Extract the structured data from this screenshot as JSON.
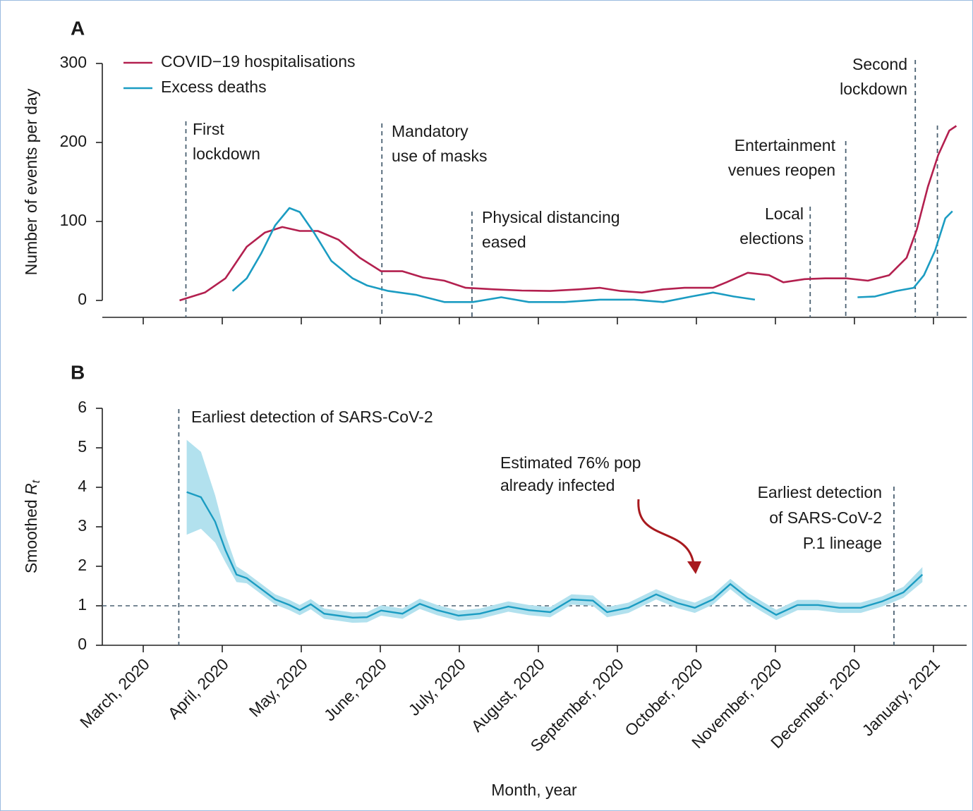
{
  "chart_data": [
    {
      "type": "line",
      "panel": "A",
      "y_label": "Number of events per day",
      "xlim": [
        -0.518,
        10.42
      ],
      "ylim": [
        -21.4,
        300
      ],
      "yticks": [
        0,
        100,
        200,
        300
      ],
      "legend": "upper left",
      "series": [
        {
          "name": "COVID−19 hospitalisations",
          "color": "#b3204f",
          "x": [
            0.46,
            0.78,
            1.04,
            1.31,
            1.54,
            1.76,
            1.98,
            2.21,
            2.47,
            2.74,
            3.01,
            3.28,
            3.54,
            3.81,
            4.08,
            4.44,
            4.79,
            5.15,
            5.51,
            5.78,
            6.04,
            6.31,
            6.58,
            6.85,
            7.21,
            7.38,
            7.65,
            7.92,
            8.1,
            8.37,
            8.63,
            8.9,
            9.17,
            9.44,
            9.66,
            9.79,
            9.93,
            10.06,
            10.2,
            10.29
          ],
          "values": [
            0,
            10,
            28,
            68,
            86,
            93,
            88,
            88,
            77,
            54,
            37,
            37,
            29,
            25,
            16,
            14,
            12.5,
            12,
            14,
            16,
            12,
            10,
            14,
            16,
            16,
            23,
            35,
            32,
            23,
            27,
            28,
            28,
            25,
            32,
            54,
            90,
            144,
            184,
            215,
            221
          ]
        },
        {
          "name": "Excess deaths",
          "color": "#1b9cc2",
          "x": [
            1.13,
            1.31,
            1.49,
            1.67,
            1.85,
            1.98,
            2.16,
            2.38,
            2.65,
            2.83,
            3.1,
            3.46,
            3.81,
            4.17,
            4.53,
            4.88,
            5.33,
            5.78,
            6.21,
            6.58,
            6.94,
            7.21,
            7.47,
            7.74,
            8.4,
            9.04,
            9.26,
            9.53,
            9.75,
            9.88,
            10.02,
            10.15,
            10.24
          ],
          "values": [
            12,
            28,
            59,
            95,
            117,
            112,
            86,
            50,
            28,
            19,
            12,
            7,
            -2,
            -2,
            4,
            -2,
            -2,
            1,
            1,
            -2,
            5,
            10,
            5,
            1,
            null,
            4,
            5,
            12,
            16,
            32,
            63,
            104,
            113
          ]
        }
      ],
      "events": [
        {
          "label": [
            "First",
            "lockdown"
          ],
          "x": 0.54
        },
        {
          "label": [
            "Mandatory",
            "use of masks"
          ],
          "x": 3.02
        },
        {
          "label": [
            "Physical distancing",
            "eased"
          ],
          "x": 4.16
        },
        {
          "label": [
            "Local",
            "elections"
          ],
          "x": 8.44
        },
        {
          "label": [
            "Entertainment",
            "venues reopen"
          ],
          "x": 8.89
        },
        {
          "label": [
            "Second",
            "lockdown"
          ],
          "x": 9.77
        },
        {
          "label": null,
          "x": 10.05
        }
      ]
    },
    {
      "type": "band-line",
      "panel": "B",
      "y_label": "Smoothed",
      "y_label_symbol": "R",
      "y_label_subscript": "t",
      "x_label": "Month, year",
      "xlim": [
        -0.518,
        10.42
      ],
      "xticks": [
        {
          "value": 0,
          "label": "March, 2020"
        },
        {
          "value": 1,
          "label": "April, 2020"
        },
        {
          "value": 2,
          "label": "May, 2020"
        },
        {
          "value": 3,
          "label": "June, 2020"
        },
        {
          "value": 4,
          "label": "July, 2020"
        },
        {
          "value": 5,
          "label": "August, 2020"
        },
        {
          "value": 6,
          "label": "September, 2020"
        },
        {
          "value": 7,
          "label": "October, 2020"
        },
        {
          "value": 8,
          "label": "November, 2020"
        },
        {
          "value": 9,
          "label": "December, 2020"
        },
        {
          "value": 10,
          "label": "January, 2021"
        }
      ],
      "ylim": [
        0,
        6
      ],
      "yticks": [
        0,
        1,
        2,
        3,
        4,
        5,
        6
      ],
      "reference_line": 1,
      "series": [
        {
          "color": "#1b9cc2",
          "band_color": "#b2e1ee",
          "x": [
            0.55,
            0.73,
            0.91,
            1.04,
            1.18,
            1.31,
            1.49,
            1.67,
            1.85,
            1.98,
            2.12,
            2.29,
            2.47,
            2.65,
            2.83,
            3.01,
            3.28,
            3.5,
            3.72,
            3.99,
            4.26,
            4.62,
            4.88,
            5.15,
            5.42,
            5.69,
            5.87,
            6.14,
            6.49,
            6.76,
            6.98,
            7.21,
            7.43,
            7.65,
            7.83,
            8.01,
            8.28,
            8.54,
            8.81,
            9.08,
            9.35,
            9.62,
            9.86
          ],
          "values": [
            3.88,
            3.75,
            3.13,
            2.41,
            1.79,
            1.7,
            1.43,
            1.16,
            1.02,
            0.89,
            1.04,
            0.8,
            0.75,
            0.7,
            0.71,
            0.88,
            0.8,
            1.05,
            0.89,
            0.75,
            0.8,
            0.98,
            0.89,
            0.84,
            1.16,
            1.13,
            0.84,
            0.95,
            1.29,
            1.07,
            0.95,
            1.16,
            1.55,
            1.2,
            0.98,
            0.77,
            1.02,
            1.02,
            0.95,
            0.95,
            1.11,
            1.34,
            1.79
          ],
          "lower": [
            2.8,
            2.95,
            2.6,
            2.1,
            1.6,
            1.57,
            1.3,
            1.03,
            0.89,
            0.76,
            0.91,
            0.67,
            0.62,
            0.57,
            0.58,
            0.75,
            0.67,
            0.92,
            0.76,
            0.62,
            0.67,
            0.85,
            0.76,
            0.71,
            1.03,
            1.0,
            0.71,
            0.82,
            1.16,
            0.94,
            0.82,
            1.03,
            1.42,
            1.07,
            0.85,
            0.64,
            0.89,
            0.89,
            0.82,
            0.82,
            0.98,
            1.2,
            1.6
          ],
          "upper": [
            5.2,
            4.9,
            3.8,
            2.8,
            2.0,
            1.83,
            1.56,
            1.29,
            1.15,
            1.02,
            1.17,
            0.93,
            0.88,
            0.83,
            0.84,
            1.01,
            0.93,
            1.18,
            1.02,
            0.88,
            0.93,
            1.11,
            1.02,
            0.97,
            1.29,
            1.26,
            0.97,
            1.08,
            1.42,
            1.2,
            1.08,
            1.29,
            1.68,
            1.33,
            1.11,
            0.9,
            1.15,
            1.15,
            1.08,
            1.08,
            1.24,
            1.48,
            1.98
          ]
        }
      ],
      "events": [
        {
          "label": [
            "Earliest detection of SARS-CoV-2"
          ],
          "x": 0.45
        },
        {
          "label": [
            "Earliest detection",
            "of SARS-CoV-2",
            "P.1 lineage"
          ],
          "x": 9.5
        }
      ],
      "annotation": {
        "text": [
          "Estimated 76% pop",
          "already infected"
        ],
        "color": "#a8191e"
      }
    }
  ]
}
